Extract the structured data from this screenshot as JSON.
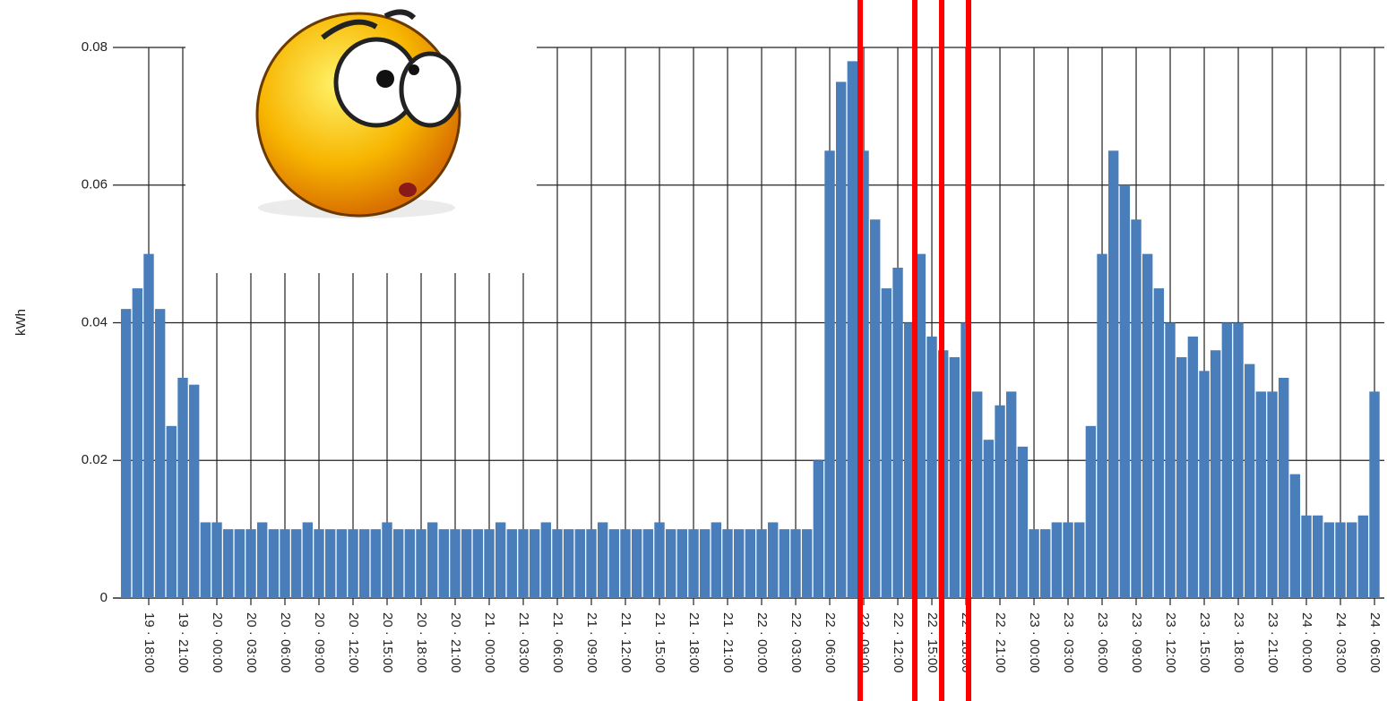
{
  "chart_data": {
    "type": "bar",
    "y_label": "kWh",
    "color": "#4a7ebb",
    "grid": true,
    "ylim": [
      0,
      0.08
    ],
    "yticks": [
      0,
      0.02,
      0.04,
      0.06,
      0.08
    ],
    "categories": [
      null,
      null,
      "19 · 18:00",
      null,
      null,
      "19 · 21:00",
      null,
      null,
      "20 · 00:00",
      null,
      null,
      "20 · 03:00",
      null,
      null,
      "20 · 06:00",
      null,
      null,
      "20 · 09:00",
      null,
      null,
      "20 · 12:00",
      null,
      null,
      "20 · 15:00",
      null,
      null,
      "20 · 18:00",
      null,
      null,
      "20 · 21:00",
      null,
      null,
      "21 · 00:00",
      null,
      null,
      "21 · 03:00",
      null,
      null,
      "21 · 06:00",
      null,
      null,
      "21 · 09:00",
      null,
      null,
      "21 · 12:00",
      null,
      null,
      "21 · 15:00",
      null,
      null,
      "21 · 18:00",
      null,
      null,
      "21 · 21:00",
      null,
      null,
      "22 · 00:00",
      null,
      null,
      "22 · 03:00",
      null,
      null,
      "22 · 06:00",
      null,
      null,
      "22 · 09:00",
      null,
      null,
      "22 · 12:00",
      null,
      null,
      "22 · 15:00",
      null,
      null,
      "22 · 18:00",
      null,
      null,
      "22 · 21:00",
      null,
      null,
      "23 · 00:00",
      null,
      null,
      "23 · 03:00",
      null,
      null,
      "23 · 06:00",
      null,
      null,
      "23 · 09:00",
      null,
      null,
      "23 · 12:00",
      null,
      null,
      "23 · 15:00",
      null,
      null,
      "23 · 18:00",
      null,
      null,
      "23 · 21:00",
      null,
      null,
      "24 · 00:00",
      null,
      null,
      "24 · 03:00",
      null,
      null,
      "24 · 06:00"
    ],
    "values": [
      0.042,
      0.045,
      0.05,
      0.042,
      0.025,
      0.032,
      0.031,
      0.011,
      0.011,
      0.01,
      0.01,
      0.01,
      0.011,
      0.01,
      0.01,
      0.01,
      0.011,
      0.01,
      0.01,
      0.01,
      0.01,
      0.01,
      0.01,
      0.011,
      0.01,
      0.01,
      0.01,
      0.011,
      0.01,
      0.01,
      0.01,
      0.01,
      0.01,
      0.011,
      0.01,
      0.01,
      0.01,
      0.011,
      0.01,
      0.01,
      0.01,
      0.01,
      0.011,
      0.01,
      0.01,
      0.01,
      0.01,
      0.011,
      0.01,
      0.01,
      0.01,
      0.01,
      0.011,
      0.01,
      0.01,
      0.01,
      0.01,
      0.011,
      0.01,
      0.01,
      0.01,
      0.02,
      0.065,
      0.075,
      0.078,
      0.065,
      0.055,
      0.045,
      0.048,
      0.04,
      0.05,
      0.038,
      0.036,
      0.035,
      0.04,
      0.03,
      0.023,
      0.028,
      0.03,
      0.022,
      0.01,
      0.01,
      0.011,
      0.011,
      0.011,
      0.025,
      0.05,
      0.065,
      0.06,
      0.055,
      0.05,
      0.045,
      0.04,
      0.035,
      0.038,
      0.033,
      0.036,
      0.04,
      0.04,
      0.034,
      0.03,
      0.03,
      0.032,
      0.018,
      0.012,
      0.012,
      0.011,
      0.011,
      0.011,
      0.012,
      0.03
    ]
  }
}
